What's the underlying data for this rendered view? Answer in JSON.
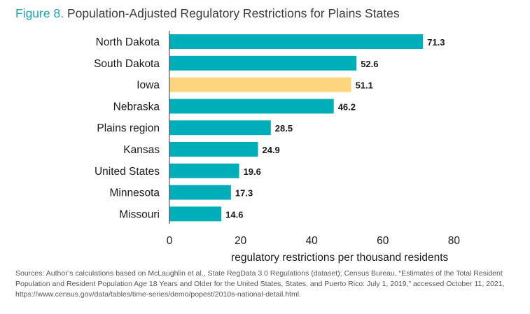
{
  "title": {
    "figure_label": "Figure 8.",
    "text": "Population-Adjusted Regulatory Restrictions for Plains States"
  },
  "chart_data": {
    "type": "bar",
    "orientation": "horizontal",
    "categories": [
      "North Dakota",
      "South Dakota",
      "Iowa",
      "Nebraska",
      "Plains region",
      "Kansas",
      "United States",
      "Minnesota",
      "Missouri"
    ],
    "values": [
      71.3,
      52.6,
      51.1,
      46.2,
      28.5,
      24.9,
      19.6,
      17.3,
      14.6
    ],
    "value_labels": [
      "71.3",
      "52.6",
      "51.1",
      "46.2",
      "28.5",
      "24.9",
      "19.6",
      "17.3",
      "14.6"
    ],
    "highlight": "Iowa",
    "colors": {
      "default": "#00aeb9",
      "highlight": "#fdd57e",
      "axis": "#333333"
    },
    "xlabel": "regulatory restrictions per thousand residents",
    "xlim": [
      0,
      80
    ],
    "xticks": [
      0,
      20,
      40,
      60,
      80
    ],
    "xtick_labels": [
      "0",
      "20",
      "40",
      "60",
      "80"
    ],
    "grid": false,
    "legend": "none"
  },
  "sources": "Sources: Author’s calculations based on McLaughlin et al., State RegData 3.0 Regulations (dataset); Census Bureau, “Estimates of the Total Resident Population and Resident Population Age 18 Years and Older for the United States, States, and Puerto Rico: July 1, 2019,” accessed October 11, 2021, https://www.census.gov/data/tables/time-series/demo/popest/2010s-national-detail.html."
}
